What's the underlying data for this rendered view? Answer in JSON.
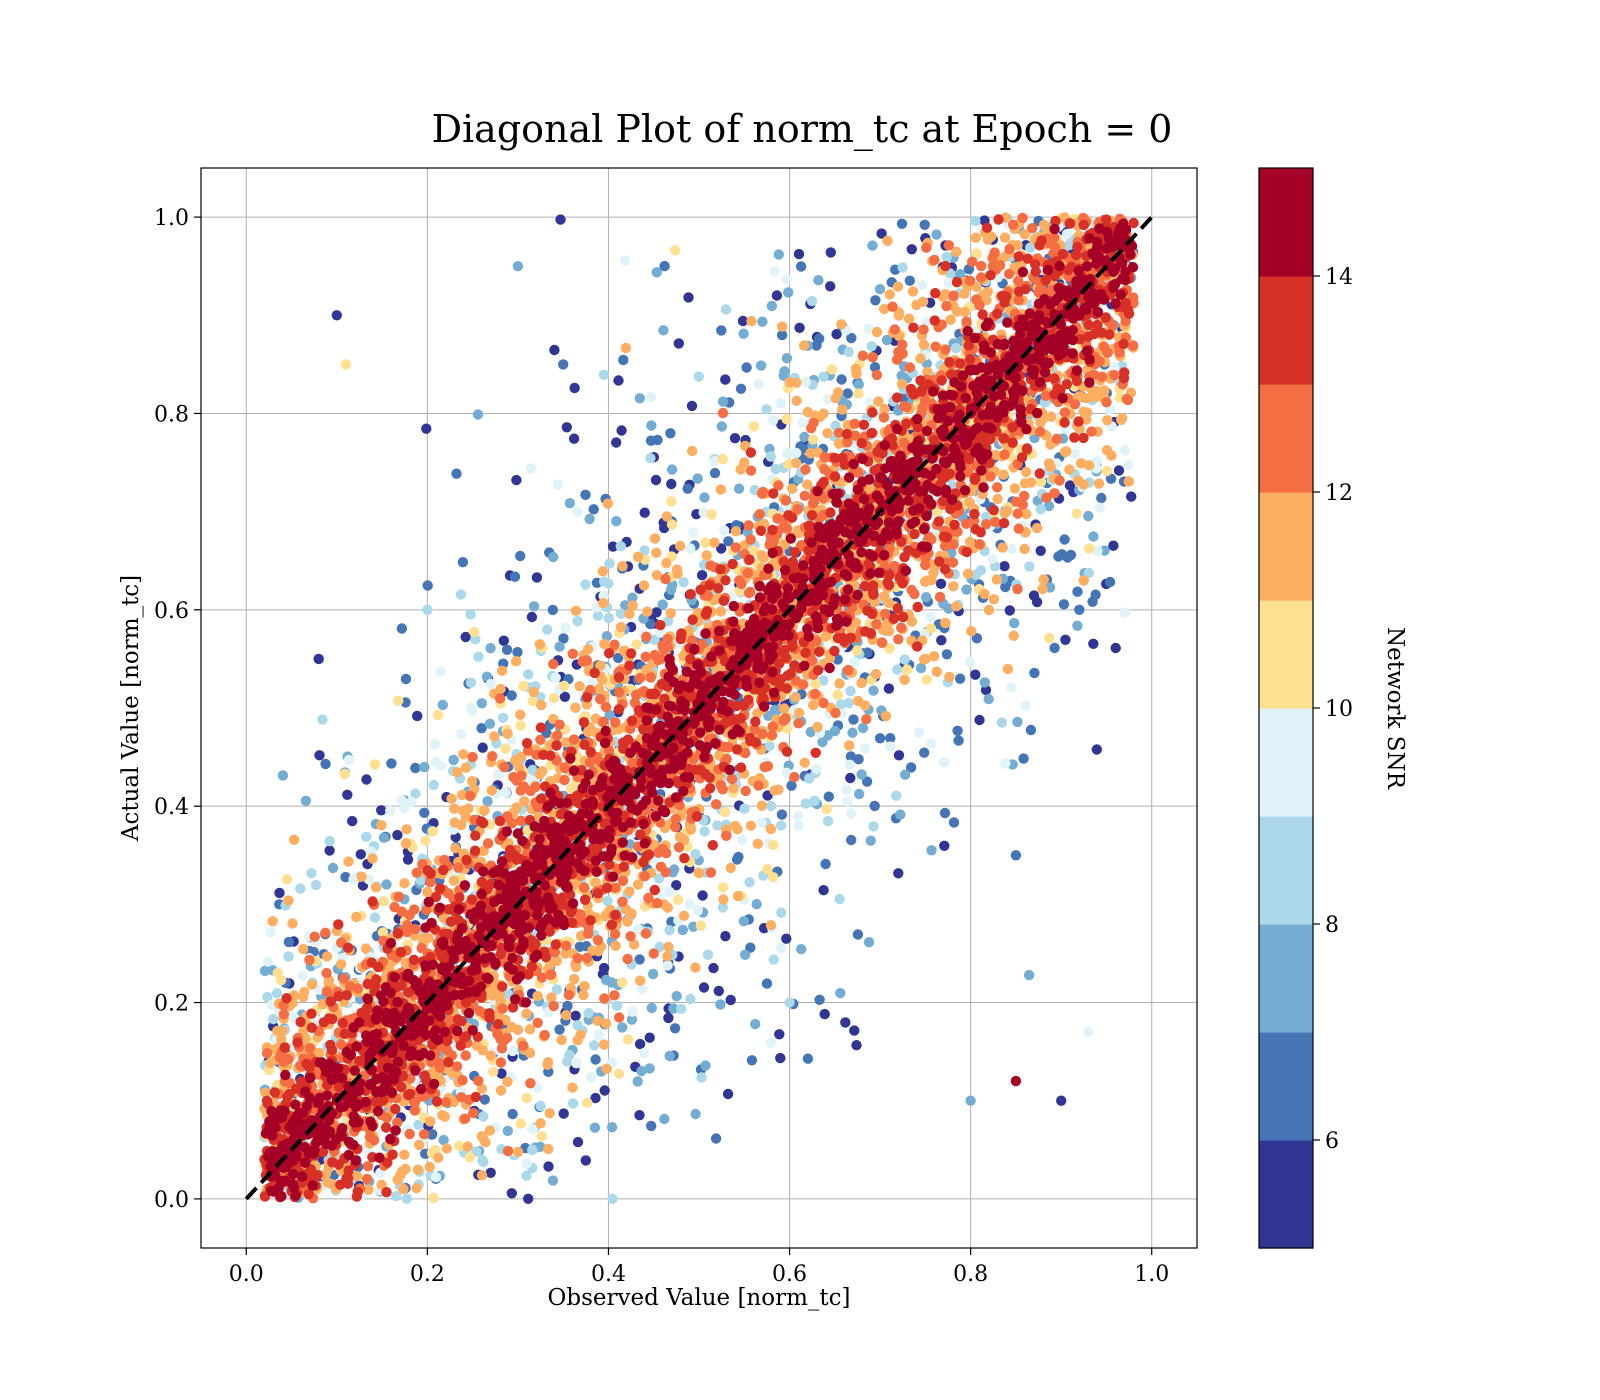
{
  "chart_data": {
    "type": "scatter",
    "title": "Diagonal Plot of norm_tc at Epoch = 0",
    "xlabel": "Observed Value [norm_tc]",
    "ylabel": "Actual Value [norm_tc]",
    "xlim": [
      -0.05,
      1.05
    ],
    "ylim": [
      -0.05,
      1.05
    ],
    "xticks": [
      "0.0",
      "0.2",
      "0.4",
      "0.6",
      "0.8",
      "1.0"
    ],
    "yticks": [
      "0.0",
      "0.2",
      "0.4",
      "0.6",
      "0.8",
      "1.0"
    ],
    "grid": true,
    "reference_line": {
      "from": [
        0,
        0
      ],
      "to": [
        1,
        1
      ],
      "style": "dashed",
      "color": "#000000"
    },
    "colorbar": {
      "label": "Network SNR",
      "range": [
        5,
        15
      ],
      "ticks": [
        "6",
        "8",
        "10",
        "12",
        "14"
      ],
      "colors": [
        "#313695",
        "#4575b4",
        "#74add1",
        "#abd9e9",
        "#e0f3f8",
        "#fee090",
        "#fdae61",
        "#f46d43",
        "#d73027",
        "#a50026"
      ]
    },
    "sample_points": [
      {
        "x": 0.05,
        "y": 0.05,
        "snr": 15
      },
      {
        "x": 0.1,
        "y": 0.1,
        "snr": 15
      },
      {
        "x": 0.15,
        "y": 0.15,
        "snr": 15
      },
      {
        "x": 0.2,
        "y": 0.2,
        "snr": 15
      },
      {
        "x": 0.3,
        "y": 0.3,
        "snr": 15
      },
      {
        "x": 0.4,
        "y": 0.4,
        "snr": 15
      },
      {
        "x": 0.5,
        "y": 0.5,
        "snr": 15
      },
      {
        "x": 0.6,
        "y": 0.6,
        "snr": 15
      },
      {
        "x": 0.7,
        "y": 0.7,
        "snr": 15
      },
      {
        "x": 0.8,
        "y": 0.8,
        "snr": 15
      },
      {
        "x": 0.9,
        "y": 0.9,
        "snr": 15
      },
      {
        "x": 0.95,
        "y": 0.95,
        "snr": 15
      },
      {
        "x": 0.25,
        "y": 0.45,
        "snr": 12
      },
      {
        "x": 0.45,
        "y": 0.25,
        "snr": 12
      },
      {
        "x": 0.55,
        "y": 0.75,
        "snr": 11
      },
      {
        "x": 0.75,
        "y": 0.55,
        "snr": 11
      },
      {
        "x": 0.2,
        "y": 0.6,
        "snr": 8
      },
      {
        "x": 0.6,
        "y": 0.2,
        "snr": 8
      },
      {
        "x": 0.35,
        "y": 0.85,
        "snr": 6
      },
      {
        "x": 0.85,
        "y": 0.35,
        "snr": 6
      },
      {
        "x": 0.1,
        "y": 0.9,
        "snr": 5
      },
      {
        "x": 0.9,
        "y": 0.1,
        "snr": 5
      },
      {
        "x": 0.3,
        "y": 0.95,
        "snr": 7
      },
      {
        "x": 0.8,
        "y": 0.1,
        "snr": 7
      },
      {
        "x": 0.08,
        "y": 0.55,
        "snr": 5
      },
      {
        "x": 0.92,
        "y": 0.6,
        "snr": 6
      },
      {
        "x": 0.85,
        "y": 0.12,
        "snr": 14
      },
      {
        "x": 0.11,
        "y": 0.85,
        "snr": 10
      },
      {
        "x": 0.94,
        "y": 0.66,
        "snr": 9
      },
      {
        "x": 0.93,
        "y": 0.17,
        "snr": 9
      }
    ]
  }
}
